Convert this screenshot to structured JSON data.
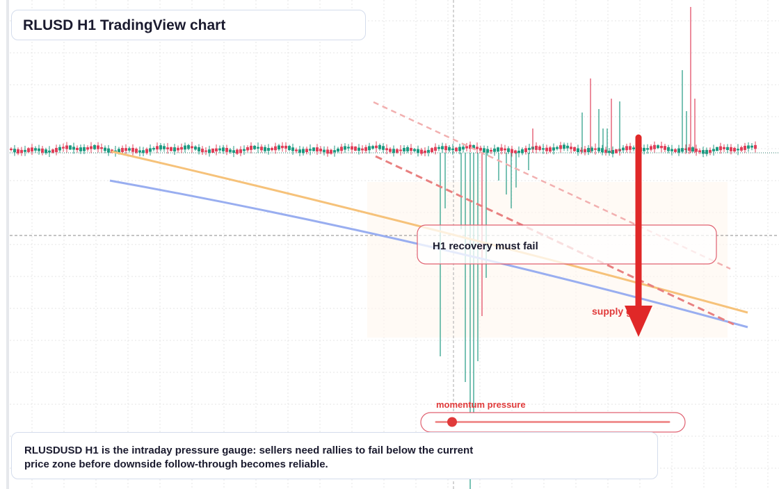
{
  "header": {
    "title": "RLUSD H1 TradingView chart"
  },
  "callout": {
    "label": "H1 recovery must fail"
  },
  "annotation": {
    "label": "supply gate"
  },
  "gauge": {
    "label": "momentum pressure"
  },
  "caption": {
    "text": "RLUSDUSD H1 is the intraday pressure gauge: sellers need rallies to fail below the current price zone before downside follow-through becomes reliable."
  }
}
